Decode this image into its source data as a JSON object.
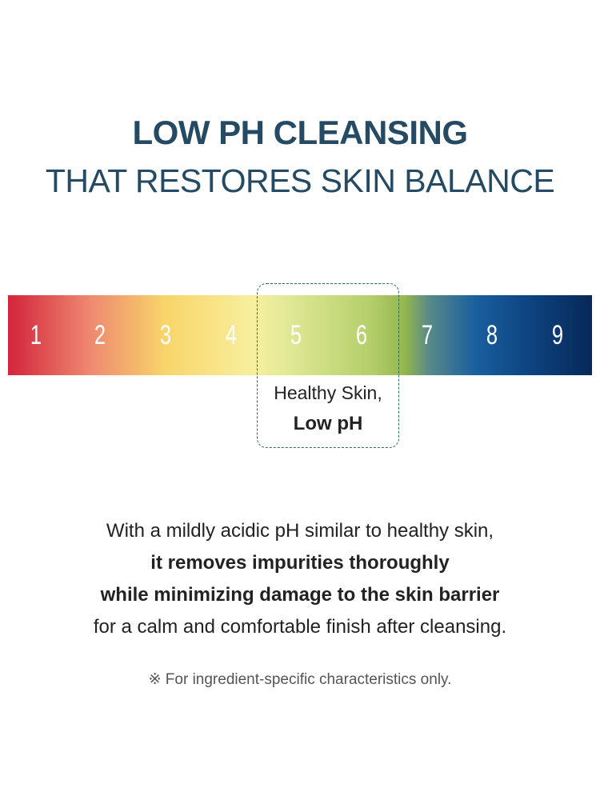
{
  "heading": {
    "line1": "LOW PH CLEANSING",
    "line2": "THAT RESTORES SKIN BALANCE"
  },
  "scale": {
    "labels": [
      "1",
      "2",
      "3",
      "4",
      "5",
      "6",
      "7",
      "8",
      "9"
    ],
    "highlight_range": [
      5,
      6
    ],
    "highlight_label_1": "Healthy Skin,",
    "highlight_label_2": "Low pH"
  },
  "colors": {
    "title": "#254a63",
    "highlight_border": "#2d6b5f"
  },
  "description": {
    "line1": "With a mildly acidic pH similar to healthy skin,",
    "line2": "it removes impurities thoroughly",
    "line3": "while minimizing damage to the skin barrier",
    "line4": "for a calm and comfortable finish after cleansing."
  },
  "note": "※ For ingredient-specific characteristics only."
}
